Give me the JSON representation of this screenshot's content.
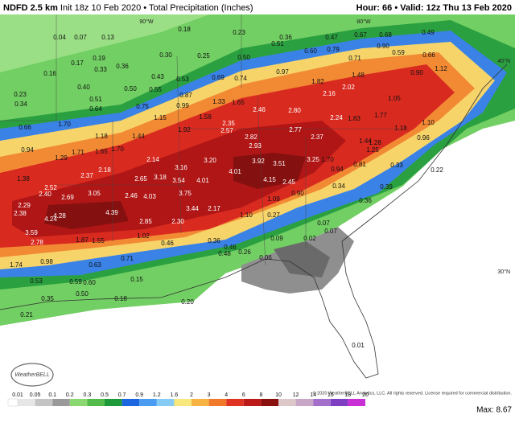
{
  "header": {
    "title": "NDFD 2.5 km",
    "subtitle": "Init 18z 10 Feb 2020 • Total Precipitation (Inches)",
    "right": "Hour: 66 • Valid: 12z Thu 13 Feb 2020"
  },
  "map": {
    "gridlabels": [
      "90°W",
      "80°W",
      "40°N",
      "30°N"
    ],
    "values": [
      "0.04",
      "0.07",
      "0.13",
      "0.18",
      "0.23",
      "0.36",
      "0.47",
      "0.67",
      "0.68",
      "0.49",
      "0.17",
      "0.19",
      "0.36",
      "0.30",
      "0.25",
      "0.50",
      "0.51",
      "0.60",
      "0.79",
      "0.71",
      "0.90",
      "0.59",
      "0.66",
      "0.16",
      "0.33",
      "0.43",
      "0.53",
      "0.69",
      "0.74",
      "0.97",
      "1.82",
      "1.48",
      "0.90",
      "1.12",
      "0.23",
      "0.40",
      "0.50",
      "0.55",
      "0.87",
      "0.34",
      "0.51",
      "0.75",
      "0.99",
      "1.33",
      "1.65",
      "2.46",
      "2.80",
      "2.16",
      "2.02",
      "1.05",
      "0.66",
      "0.64",
      "1.15",
      "1.58",
      "2.35",
      "2.24",
      "1.83",
      "1.77",
      "1.10",
      "1.70",
      "1.18",
      "1.44",
      "1.92",
      "2.57",
      "2.77",
      "1.18",
      "0.96",
      "0.94",
      "1.71",
      "1.65",
      "1.70",
      "2.82",
      "2.37",
      "1.44",
      "1.28",
      "1.25",
      "1.29",
      "2.14",
      "2.93",
      "3.20",
      "3.92",
      "3.51",
      "3.25",
      "1.70",
      "0.81",
      "0.33",
      "1.38",
      "2.37",
      "2.18",
      "2.65",
      "3.18",
      "3.16",
      "4.01",
      "0.94",
      "0.22",
      "2.52",
      "3.05",
      "2.46",
      "4.03",
      "3.54",
      "4.01",
      "4.15",
      "2.45",
      "0.34",
      "0.39",
      "2.40",
      "2.69",
      "3.75",
      "0.90",
      "1.09",
      "0.36",
      "2.29",
      "2.38",
      "4.28",
      "4.24",
      "4.39",
      "3.44",
      "2.17",
      "1.10",
      "0.27",
      "3.59",
      "2.78",
      "2.85",
      "2.30",
      "0.07",
      "0.07",
      "1.87",
      "1.55",
      "1.02",
      "0.36",
      "0.46",
      "0.09",
      "0.02",
      "1.74",
      "0.98",
      "0.63",
      "0.71",
      "0.46",
      "0.48",
      "0.26",
      "0.06",
      "0.53",
      "0.59",
      "0.60",
      "0.15",
      "0.50",
      "0.35",
      "0.18",
      "0.20",
      "0.21",
      "0.01"
    ],
    "logo": "WeatherBELL",
    "copyright": "© 2020 WeatherBELL Analytics, LLC. All rights reserved. License required for commercial distribution."
  },
  "legend": {
    "ticks": [
      "0.01",
      "0.05",
      "0.1",
      "0.2",
      "0.3",
      "0.5",
      "0.7",
      "0.9",
      "1.2",
      "1.6",
      "2",
      "3",
      "4",
      "6",
      "8",
      "10",
      "12",
      "14",
      "16",
      "18",
      "20"
    ],
    "colors": [
      "#e6e6e6",
      "#c4c4c4",
      "#9a9a9a",
      "#8ad86f",
      "#52bb4a",
      "#1f9a3a",
      "#1c66e0",
      "#4a9cf0",
      "#86cbf5",
      "#f7e77c",
      "#f6b342",
      "#f07a2a",
      "#e03222",
      "#bb1a18",
      "#8a1010",
      "#dcc8c8",
      "#c8a6c6",
      "#a46fcb",
      "#7f3fc2",
      "#c82fd4"
    ],
    "max": "Max: 8.67"
  }
}
